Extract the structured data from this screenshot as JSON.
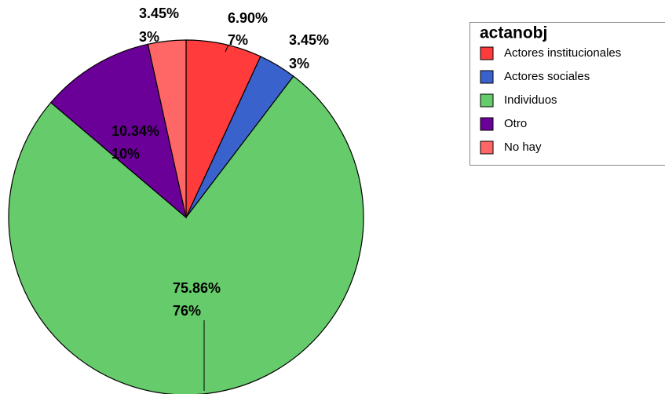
{
  "chart_data": {
    "type": "pie",
    "legend_title": "actanobj",
    "categories": [
      "Actores institucionales",
      "Actores sociales",
      "Individuos",
      "Otro",
      "No hay"
    ],
    "values": [
      6.9,
      3.45,
      75.86,
      10.34,
      3.45
    ],
    "value_labels": [
      "6.90%",
      "3.45%",
      "75.86%",
      "10.34%",
      "3.45%"
    ],
    "rounded_labels": [
      "7%",
      "3%",
      "76%",
      "10%",
      "3%"
    ],
    "colors": [
      "#ff3b3b",
      "#3a62cc",
      "#66cc6b",
      "#6b0099",
      "#ff6666"
    ],
    "legend": "top-right"
  }
}
